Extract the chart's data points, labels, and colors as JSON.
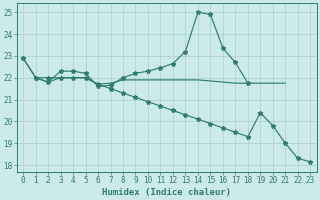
{
  "xlabel": "Humidex (Indice chaleur)",
  "x": [
    0,
    1,
    2,
    3,
    4,
    5,
    6,
    7,
    8,
    9,
    10,
    11,
    12,
    13,
    14,
    15,
    16,
    17,
    18,
    19,
    20,
    21,
    22,
    23
  ],
  "line_peak": [
    22.9,
    22.0,
    21.8,
    22.3,
    22.3,
    22.2,
    21.6,
    21.65,
    22.0,
    22.2,
    22.3,
    22.45,
    22.65,
    23.2,
    25.0,
    24.9,
    23.35,
    22.7,
    21.75,
    null,
    null,
    null,
    null,
    null
  ],
  "line_flat": [
    null,
    22.0,
    21.8,
    22.0,
    22.0,
    22.0,
    21.7,
    21.75,
    21.9,
    21.9,
    21.9,
    21.9,
    21.9,
    21.9,
    21.9,
    21.85,
    21.8,
    21.75,
    21.75,
    21.75,
    21.75,
    21.75,
    null,
    null
  ],
  "line_desc": [
    22.9,
    22.0,
    22.0,
    22.0,
    22.0,
    22.0,
    21.7,
    21.5,
    21.3,
    21.1,
    20.9,
    20.7,
    20.5,
    20.3,
    20.1,
    19.9,
    19.7,
    19.5,
    19.3,
    20.4,
    19.8,
    19.0,
    18.3,
    18.15
  ],
  "color": "#2e7d6e",
  "bg_color": "#cceaea",
  "grid_color": "#aacccc",
  "ylim_min": 17.7,
  "ylim_max": 25.4,
  "yticks": [
    18,
    19,
    20,
    21,
    22,
    23,
    24,
    25
  ],
  "ytick_labels": [
    "18",
    "19",
    "20",
    "21",
    "22",
    "23",
    "24",
    "25"
  ],
  "xlim_min": -0.5,
  "xlim_max": 23.5,
  "xlabel_fontsize": 6.5,
  "tick_fontsize": 5.5
}
